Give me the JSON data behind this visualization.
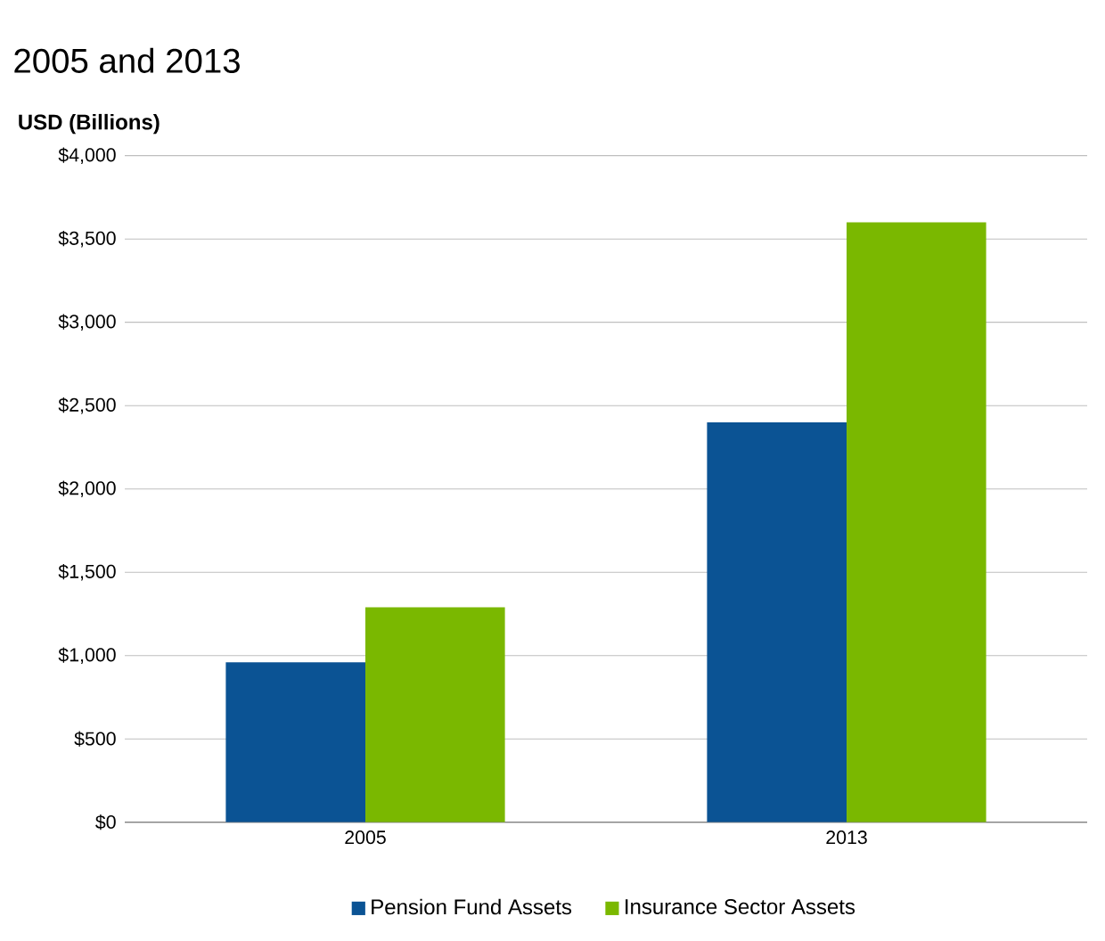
{
  "chart_data": {
    "type": "bar",
    "title": "2005 and 2013",
    "ylabel": "USD (Billions)",
    "categories": [
      "2005",
      "2013"
    ],
    "series": [
      {
        "name": "Pension Fund Assets",
        "color": "#0b5394",
        "values": [
          960,
          2400
        ]
      },
      {
        "name": "Insurance Sector Assets",
        "color": "#7ab800",
        "values": [
          1290,
          3600
        ]
      }
    ],
    "ylim": [
      0,
      4000
    ],
    "yticks": [
      {
        "value": 0,
        "label": "$0"
      },
      {
        "value": 500,
        "label": "$500"
      },
      {
        "value": 1000,
        "label": "$1,000"
      },
      {
        "value": 1500,
        "label": "$1,500"
      },
      {
        "value": 2000,
        "label": "$2,000"
      },
      {
        "value": 2500,
        "label": "$2,500"
      },
      {
        "value": 3000,
        "label": "$3,000"
      },
      {
        "value": 3500,
        "label": "$3,500"
      },
      {
        "value": 4000,
        "label": "$4,000"
      }
    ],
    "grid": "y",
    "legend": "bottom"
  }
}
